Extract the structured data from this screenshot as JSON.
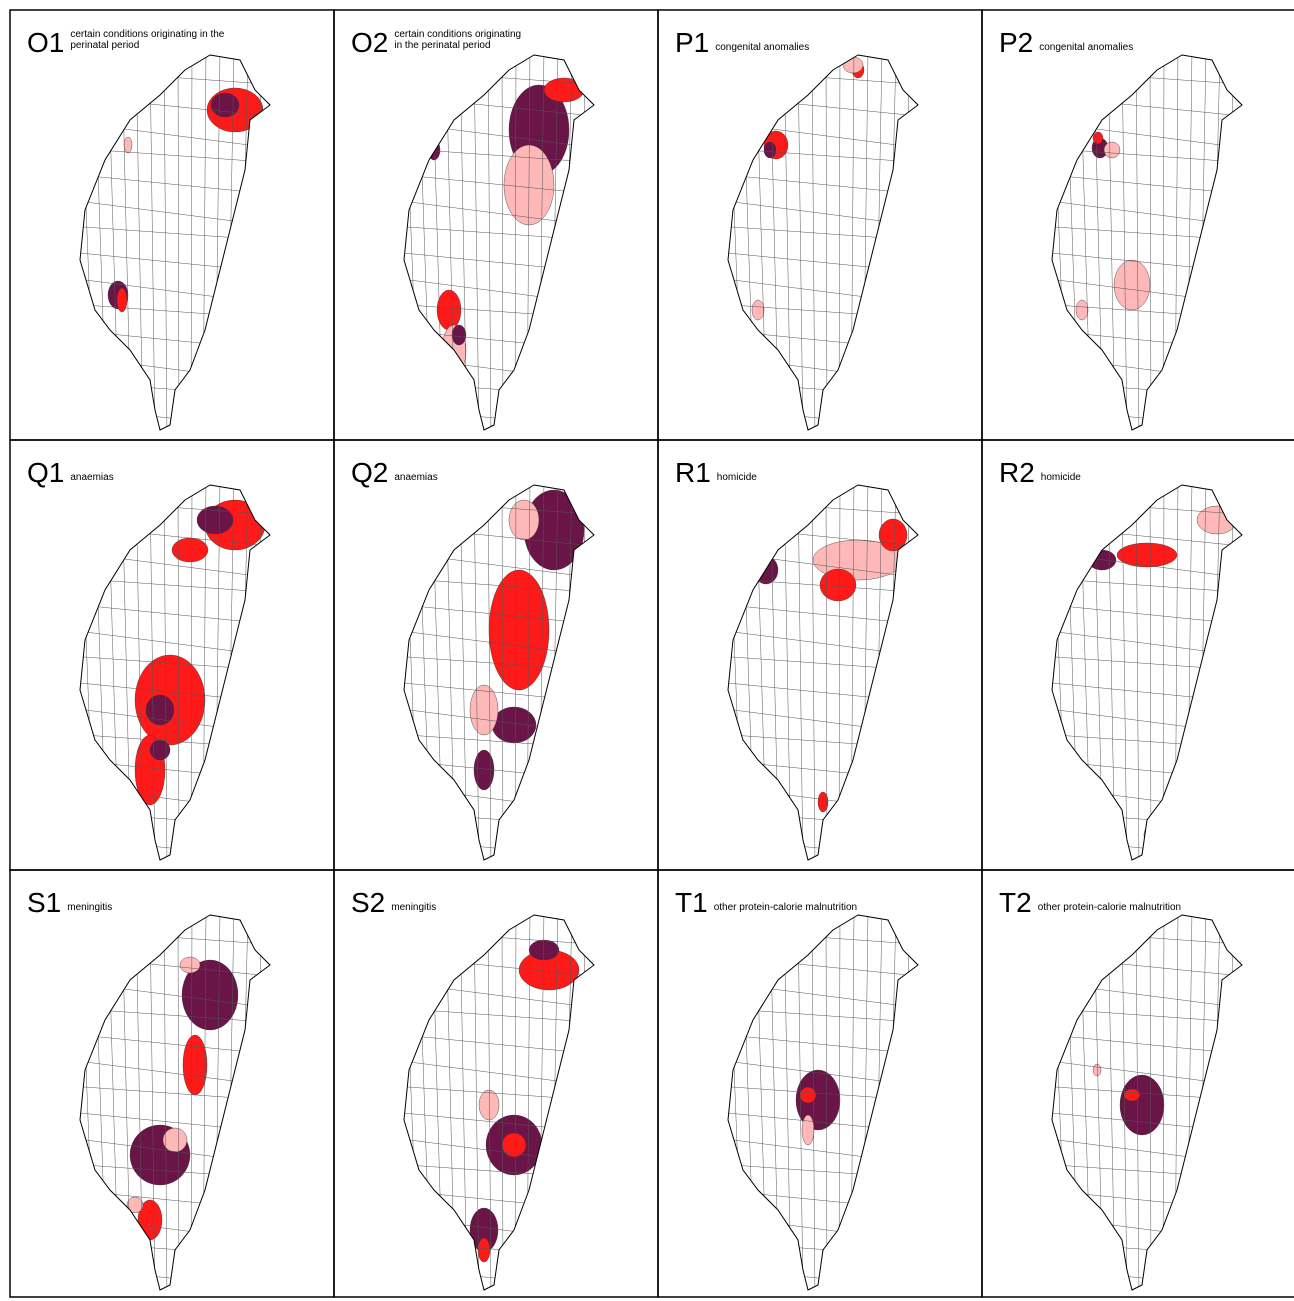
{
  "panels": [
    {
      "label": "O1",
      "caption": [
        "certain conditions originating in the",
        "perinatal period"
      ]
    },
    {
      "label": "O2",
      "caption": [
        "certain conditions originating",
        "in the perinatal period"
      ]
    },
    {
      "label": "P1",
      "caption": [
        "congenital anomalies"
      ]
    },
    {
      "label": "P2",
      "caption": [
        "congenital anomalies"
      ]
    },
    {
      "label": "Q1",
      "caption": [
        "anaemias"
      ]
    },
    {
      "label": "Q2",
      "caption": [
        "anaemias"
      ]
    },
    {
      "label": "R1",
      "caption": [
        "homicide"
      ]
    },
    {
      "label": "R2",
      "caption": [
        "homicide"
      ]
    },
    {
      "label": "S1",
      "caption": [
        "meningitis"
      ]
    },
    {
      "label": "S2",
      "caption": [
        "meningitis"
      ]
    },
    {
      "label": "T1",
      "caption": [
        "other protein-calorie malnutrition"
      ]
    },
    {
      "label": "T2",
      "caption": [
        "other protein-calorie malnutrition"
      ]
    }
  ]
}
